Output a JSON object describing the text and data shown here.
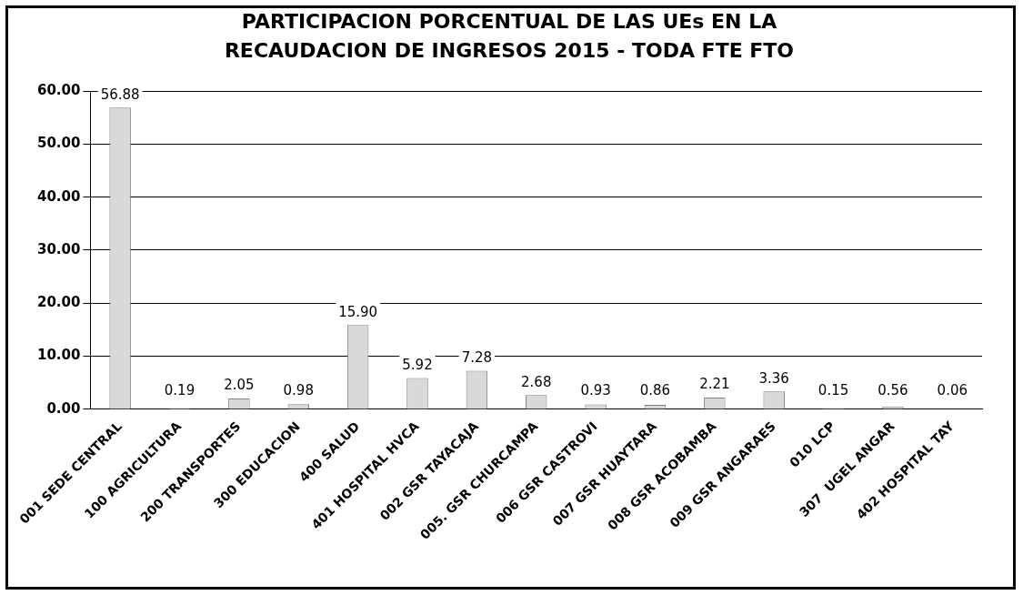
{
  "chart_data": {
    "type": "bar",
    "title": "PARTICIPACION PORCENTUAL DE LAS UEs EN LA RECAUDACION DE INGRESOS 2015 - TODA FTE FTO",
    "categories": [
      "001 SEDE CENTRAL",
      "100 AGRICULTURA",
      "200 TRANSPORTES",
      "300 EDUCACION",
      "400 SALUD",
      "401 HOSPITAL HVCA",
      "002 GSR TAYACAJA",
      "005. GSR CHURCAMPA",
      "006 GSR CASTROVI",
      "007 GSR HUAYTARA",
      "008 GSR ACOBAMBA",
      "009 GSR ANGARAES",
      "010 LCP",
      "307  UGEL ANGAR",
      "402 HOSPITAL TAY"
    ],
    "values": [
      56.88,
      0.19,
      2.05,
      0.98,
      15.9,
      5.92,
      7.28,
      2.68,
      0.93,
      0.86,
      2.21,
      3.36,
      0.15,
      0.56,
      0.06
    ],
    "value_labels": [
      "56.88",
      "0.19",
      "2.05",
      "0.98",
      "15.90",
      "5.92",
      "7.28",
      "2.68",
      "0.93",
      "0.86",
      "2.21",
      "3.36",
      "0.15",
      "0.56",
      "0.06"
    ],
    "color": "#d9d9d9",
    "ylim": [
      0,
      60
    ],
    "yticks": [
      {
        "value": 0,
        "label": "0.00"
      },
      {
        "value": 10,
        "label": "10.00"
      },
      {
        "value": 20,
        "label": "20.00"
      },
      {
        "value": 30,
        "label": "30.00"
      },
      {
        "value": 40,
        "label": "40.00"
      },
      {
        "value": 50,
        "label": "50.00"
      },
      {
        "value": 60,
        "label": "60.00"
      }
    ],
    "grid": "y",
    "legend": false
  }
}
